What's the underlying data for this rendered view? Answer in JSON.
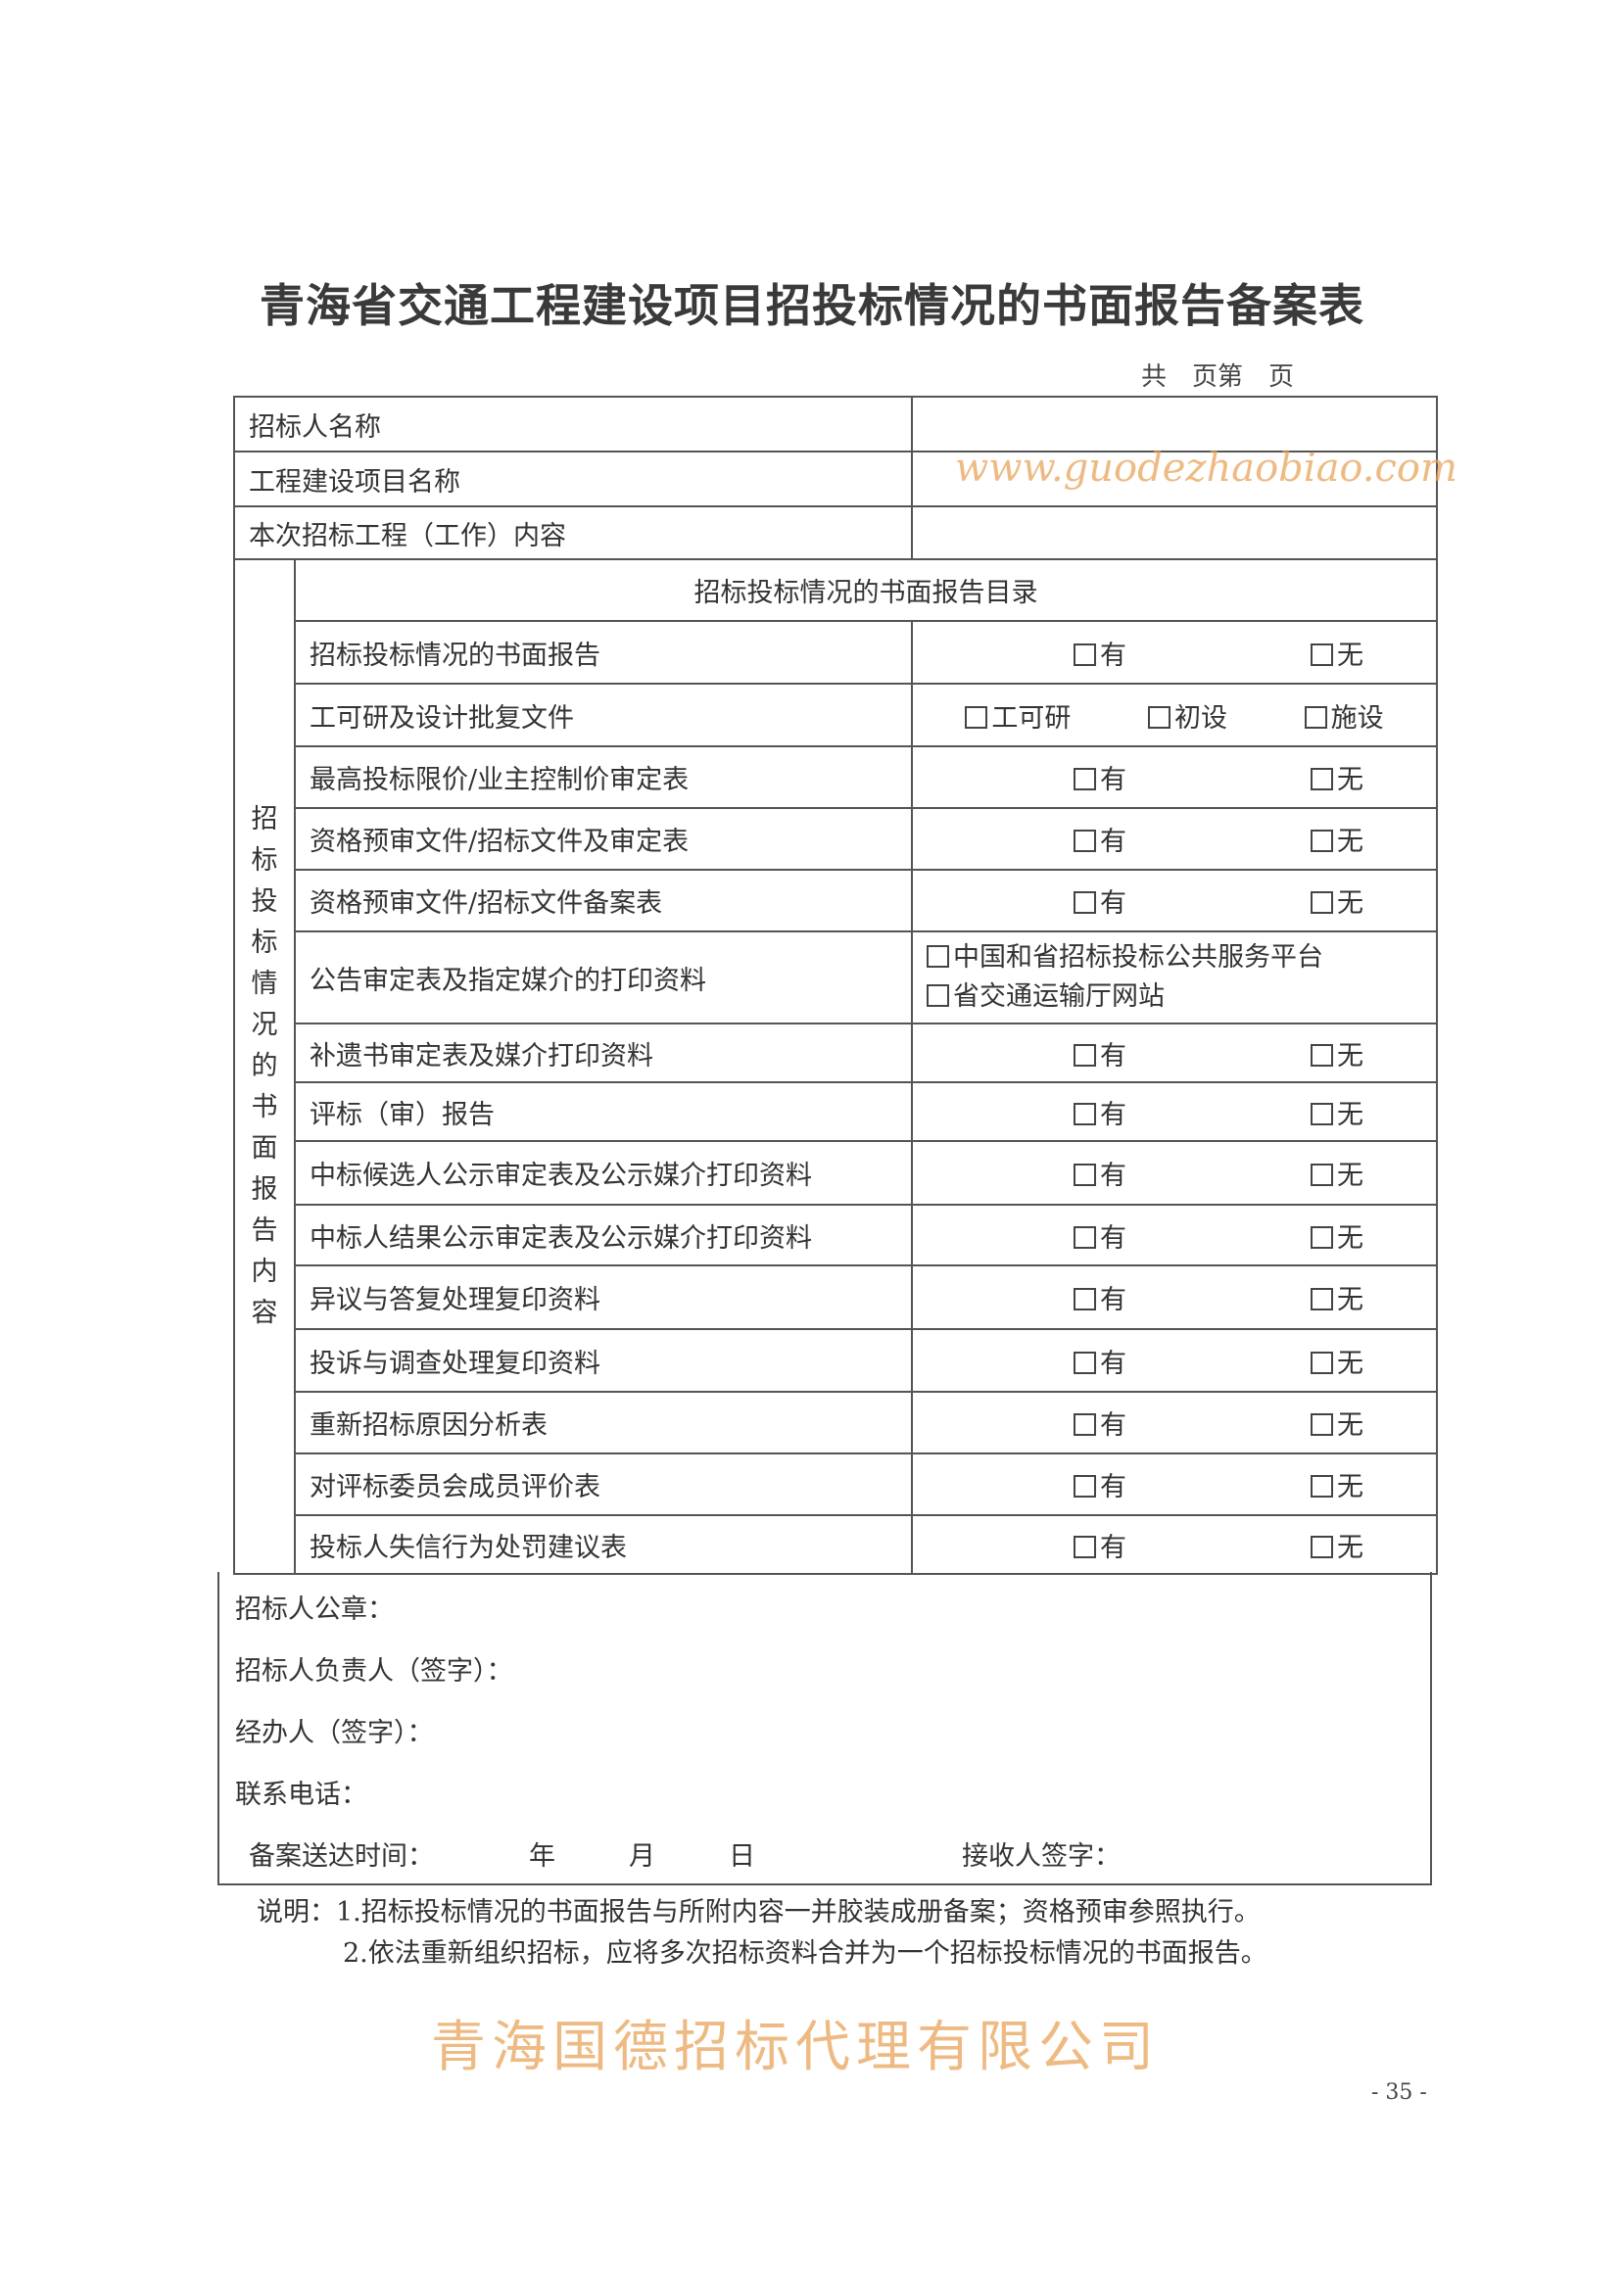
{
  "title": "青海省交通工程建设项目招投标情况的书面报告备案表",
  "page_count_label": "共　页第　页",
  "header_rows": [
    {
      "label": "招标人名称",
      "value": ""
    },
    {
      "label": "工程建设项目名称",
      "value": ""
    },
    {
      "label": "本次招标工程（工作）内容",
      "value": ""
    }
  ],
  "section": {
    "side_label": "招标投标情况的书面报告内容",
    "heading": "招标投标情况的书面报告目录",
    "items": [
      {
        "label": "招标投标情况的书面报告",
        "options": [
          "有",
          "无"
        ]
      },
      {
        "label": "工可研及设计批复文件",
        "options": [
          "工可研",
          "初设",
          "施设"
        ]
      },
      {
        "label": "最高投标限价/业主控制价审定表",
        "options": [
          "有",
          "无"
        ]
      },
      {
        "label": "资格预审文件/招标文件及审定表",
        "options": [
          "有",
          "无"
        ]
      },
      {
        "label": "资格预审文件/招标文件备案表",
        "options": [
          "有",
          "无"
        ]
      },
      {
        "label": "公告审定表及指定媒介的打印资料",
        "options": [
          "中国和省招标投标公共服务平台",
          "省交通运输厅网站"
        ],
        "stacked": true
      },
      {
        "label": "补遗书审定表及媒介打印资料",
        "options": [
          "有",
          "无"
        ]
      },
      {
        "label": "评标（审）报告",
        "options": [
          "有",
          "无"
        ]
      },
      {
        "label": "中标候选人公示审定表及公示媒介打印资料",
        "options": [
          "有",
          "无"
        ]
      },
      {
        "label": "中标人结果公示审定表及公示媒介打印资料",
        "options": [
          "有",
          "无"
        ]
      },
      {
        "label": "异议与答复处理复印资料",
        "options": [
          "有",
          "无"
        ]
      },
      {
        "label": "投诉与调查处理复印资料",
        "options": [
          "有",
          "无"
        ]
      },
      {
        "label": "重新招标原因分析表",
        "options": [
          "有",
          "无"
        ]
      },
      {
        "label": "对评标委员会成员评价表",
        "options": [
          "有",
          "无"
        ]
      },
      {
        "label": "投标人失信行为处罚建议表",
        "options": [
          "有",
          "无"
        ]
      }
    ]
  },
  "signatures": {
    "seal": "招标人公章：",
    "responsible": "招标人负责人（签字）：",
    "handler": "经办人（签字）：",
    "phone": "联系电话：",
    "date_label": "备案送达时间：",
    "year": "年",
    "month": "月",
    "day": "日",
    "receiver": "接收人签字："
  },
  "notes": [
    "说明：1.招标投标情况的书面报告与所附内容一并胶装成册备案；资格预审参照执行。",
    "2.依法重新组织招标，应将多次招标资料合并为一个招标投标情况的书面报告。"
  ],
  "page_number": "- 35 -",
  "watermark": {
    "url": "www.guodezhaobiao.com",
    "company": "青海国德招标代理有限公司",
    "color": "#e9a45a"
  }
}
